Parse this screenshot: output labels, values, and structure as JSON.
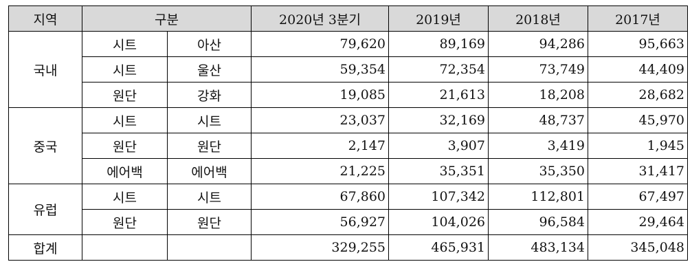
{
  "headers": {
    "region": "지역",
    "category": "구분",
    "years": [
      "2020년 3분기",
      "2019년",
      "2018년",
      "2017년"
    ]
  },
  "groups": [
    {
      "region": "국내",
      "rows": [
        {
          "type": "시트",
          "sub": "아산",
          "values": [
            "79,620",
            "89,169",
            "94,286",
            "95,663"
          ]
        },
        {
          "type": "시트",
          "sub": "울산",
          "values": [
            "59,354",
            "72,354",
            "73,749",
            "44,409"
          ]
        },
        {
          "type": "원단",
          "sub": "강화",
          "values": [
            "19,085",
            "21,613",
            "18,208",
            "28,682"
          ]
        }
      ]
    },
    {
      "region": "중국",
      "rows": [
        {
          "type": "시트",
          "sub": "시트",
          "values": [
            "23,037",
            "32,169",
            "48,737",
            "45,970"
          ]
        },
        {
          "type": "원단",
          "sub": "원단",
          "values": [
            "2,147",
            "3,907",
            "3,419",
            "1,945"
          ]
        },
        {
          "type": "에어백",
          "sub": "에어백",
          "values": [
            "21,225",
            "35,351",
            "35,350",
            "31,417"
          ]
        }
      ]
    },
    {
      "region": "유럽",
      "rows": [
        {
          "type": "시트",
          "sub": "시트",
          "values": [
            "67,860",
            "107,342",
            "112,801",
            "67,497"
          ]
        },
        {
          "type": "원단",
          "sub": "원단",
          "values": [
            "56,927",
            "104,026",
            "96,584",
            "29,464"
          ]
        }
      ]
    }
  ],
  "total": {
    "label": "합계",
    "values": [
      "329,255",
      "465,931",
      "483,134",
      "345,048"
    ]
  }
}
